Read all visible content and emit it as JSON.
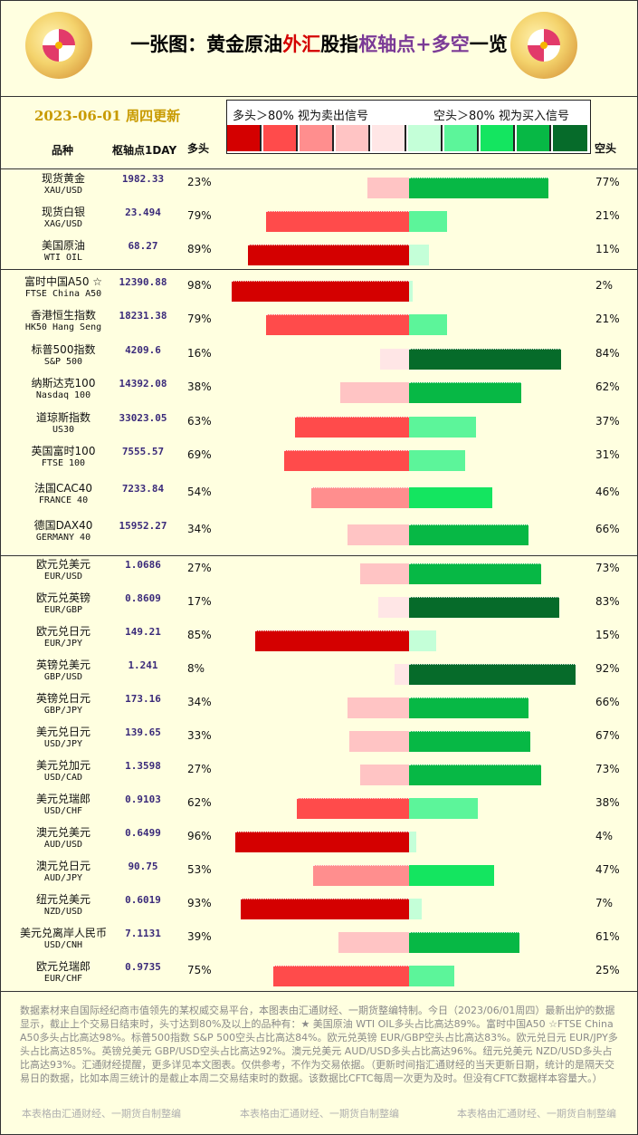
{
  "header": {
    "title_pre": "一张图：黄金原油",
    "title_fx": "外汇",
    "title_mid": "股指",
    "title_pivot": "枢轴点+多空",
    "title_post": "一览",
    "date": "2023-06-01 周四更新",
    "legend_long": "多头＞80%  视为卖出信号",
    "legend_short": "空头＞80%  视为买入信号",
    "legend_colors": [
      "#d40000",
      "#ff4b4b",
      "#ff8e8e",
      "#ffc4c4",
      "#ffe6e6",
      "#c4ffd8",
      "#5cf59a",
      "#14e560",
      "#07b845",
      "#066b2a"
    ],
    "col_name": "品种",
    "col_pivot": "枢轴点1DAY",
    "col_long": "多头",
    "col_short": "空头"
  },
  "chart_data": {
    "type": "bar",
    "rows": [
      {
        "cn": "现货黄金",
        "en": "XAU/USD",
        "pivot": "1982.33",
        "long": 23,
        "short": 77
      },
      {
        "cn": "现货白银",
        "en": "XAG/USD",
        "pivot": "23.494",
        "long": 79,
        "short": 21
      },
      {
        "cn": "美国原油",
        "en": "WTI OIL",
        "pivot": "68.27",
        "long": 89,
        "short": 11
      },
      {
        "cn": "富时中国A50 ☆",
        "en": "FTSE China A50",
        "pivot": "12390.88",
        "long": 98,
        "short": 2
      },
      {
        "cn": "香港恒生指数",
        "en": "HK50 Hang Seng",
        "pivot": "18231.38",
        "long": 79,
        "short": 21
      },
      {
        "cn": "标普500指数",
        "en": "S&P 500",
        "pivot": "4209.6",
        "long": 16,
        "short": 84
      },
      {
        "cn": "纳斯达克100",
        "en": "Nasdaq 100",
        "pivot": "14392.08",
        "long": 38,
        "short": 62
      },
      {
        "cn": "道琼斯指数",
        "en": "US30",
        "pivot": "33023.05",
        "long": 63,
        "short": 37
      },
      {
        "cn": "英国富时100",
        "en": "FTSE 100",
        "pivot": "7555.57",
        "long": 69,
        "short": 31
      },
      {
        "cn": "法国CAC40",
        "en": "FRANCE 40",
        "pivot": "7233.84",
        "long": 54,
        "short": 46
      },
      {
        "cn": "德国DAX40",
        "en": "GERMANY 40",
        "pivot": "15952.27",
        "long": 34,
        "short": 66
      },
      {
        "cn": "欧元兑美元",
        "en": "EUR/USD",
        "pivot": "1.0686",
        "long": 27,
        "short": 73
      },
      {
        "cn": "欧元兑英镑",
        "en": "EUR/GBP",
        "pivot": "0.8609",
        "long": 17,
        "short": 83
      },
      {
        "cn": "欧元兑日元",
        "en": "EUR/JPY",
        "pivot": "149.21",
        "long": 85,
        "short": 15
      },
      {
        "cn": "英镑兑美元",
        "en": "GBP/USD",
        "pivot": "1.241",
        "long": 8,
        "short": 92
      },
      {
        "cn": "英镑兑日元",
        "en": "GBP/JPY",
        "pivot": "173.16",
        "long": 34,
        "short": 66
      },
      {
        "cn": "美元兑日元",
        "en": "USD/JPY",
        "pivot": "139.65",
        "long": 33,
        "short": 67
      },
      {
        "cn": "美元兑加元",
        "en": "USD/CAD",
        "pivot": "1.3598",
        "long": 27,
        "short": 73
      },
      {
        "cn": "美元兑瑞郎",
        "en": "USD/CHF",
        "pivot": "0.9103",
        "long": 62,
        "short": 38
      },
      {
        "cn": "澳元兑美元",
        "en": "AUD/USD",
        "pivot": "0.6499",
        "long": 96,
        "short": 4
      },
      {
        "cn": "澳元兑日元",
        "en": "AUD/JPY",
        "pivot": "90.75",
        "long": 53,
        "short": 47
      },
      {
        "cn": "纽元兑美元",
        "en": "NZD/USD",
        "pivot": "0.6019",
        "long": 93,
        "short": 7
      },
      {
        "cn": "美元兑离岸人民币",
        "en": "USD/CNH",
        "pivot": "7.1131",
        "long": 39,
        "short": 61
      },
      {
        "cn": "欧元兑瑞郎",
        "en": "EUR/CHF",
        "pivot": "0.9735",
        "long": 75,
        "short": 25
      }
    ]
  },
  "footer": {
    "note": "数据素材来自国际经纪商市值领先的某权威交易平台，本图表由汇通财经、一期货整编特制。今日（2023/06/01周四）最新出炉的数据显示，截止上个交易日结束时，头寸达到80%及以上的品种有：★ 美国原油 WTI OIL多头占比高达89%。富时中国A50 ☆FTSE China A50多头占比高达98%。标普500指数 S&P 500空头占比高达84%。欧元兑英镑 EUR/GBP空头占比高达83%。欧元兑日元 EUR/JPY多头占比高达85%。英镑兑美元 GBP/USD空头占比高达92%。澳元兑美元 AUD/USD多头占比高达96%。纽元兑美元 NZD/USD多头占比高达93%。汇通财经提醒，更多详见本文图表。仅供参考，不作为交易依据。（更新时间指汇通财经的当天更新日期，统计的是隔天交易日的数据，比如本周三统计的是截止本周二交易结束时的数据。该数据比CFTC每周一次更为及时。但没有CFTC数据样本容量大。）",
    "credit": "本表格由汇通财经、一期货自制整编"
  }
}
